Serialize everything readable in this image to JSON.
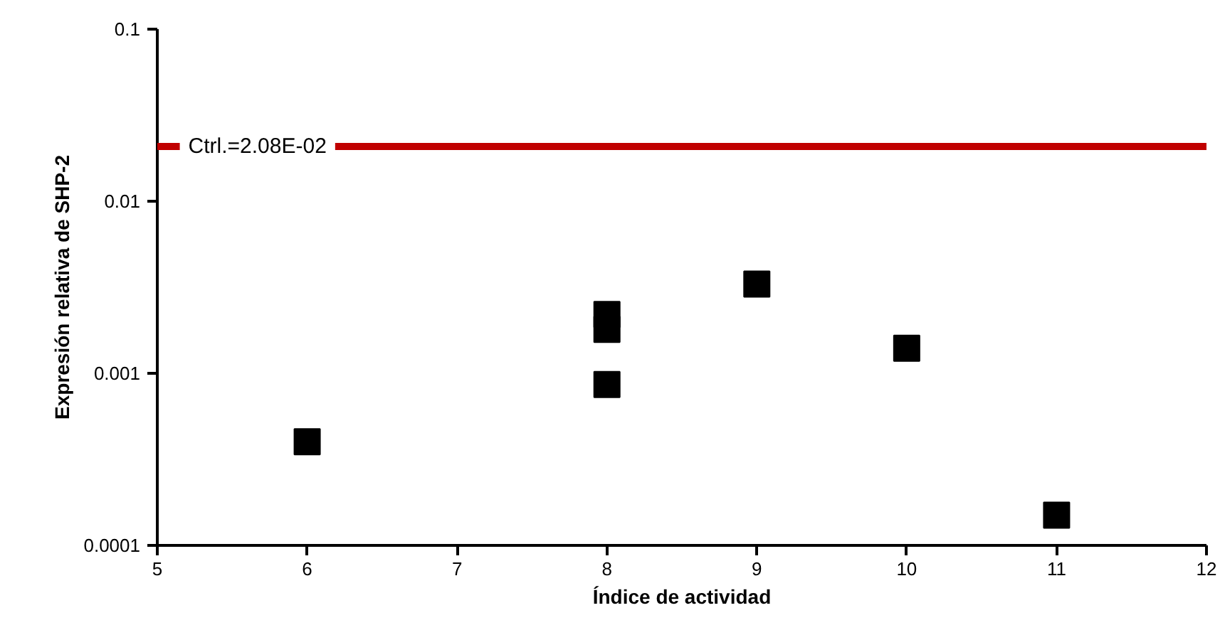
{
  "chart_data": {
    "type": "scatter",
    "xlabel": "Índice de actividad",
    "ylabel": "Expresión relativa de SHP-2",
    "x": [
      6,
      8,
      8,
      8,
      9,
      10,
      11
    ],
    "series": [
      {
        "color": "#000000",
        "values": [
          0.0004,
          0.0022,
          0.0018,
          0.00086,
          0.0033,
          0.0014,
          0.00015
        ]
      }
    ],
    "xlim": [
      5,
      12
    ],
    "xticks": [
      5,
      6,
      7,
      8,
      9,
      10,
      11,
      12
    ],
    "ylim": [
      0.0001,
      0.1
    ],
    "yticks": [
      0.0001,
      0.001,
      0.01,
      0.1
    ],
    "log": "y",
    "grid": false,
    "marker": "square",
    "ref_lines": [
      {
        "axis": "y",
        "value": 0.0208,
        "label": "Ctrl.=2.08E-02",
        "color": "#c00000"
      }
    ]
  }
}
